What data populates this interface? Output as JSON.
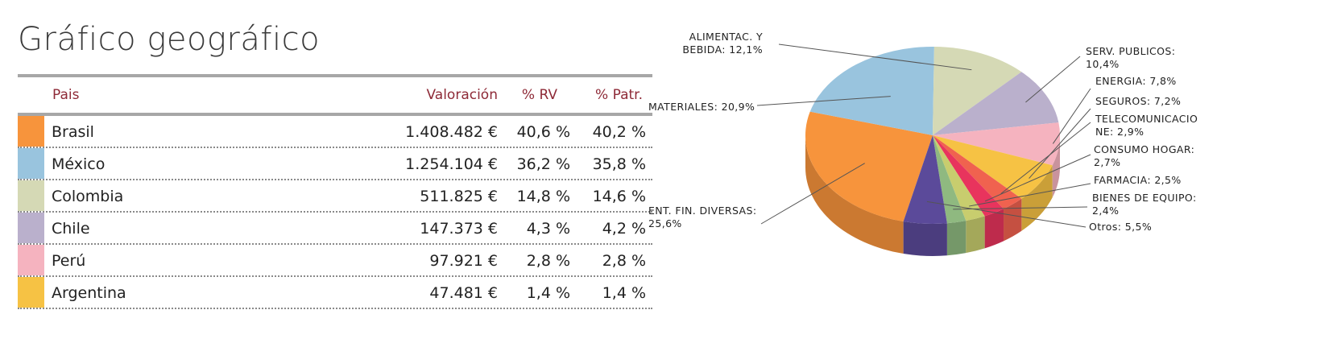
{
  "title": "Gráfico geográfico",
  "table": {
    "headers": {
      "pais": "Pais",
      "valoracion": "Valoración",
      "rv": "% RV",
      "patr": "% Patr."
    },
    "rows": [
      {
        "country": "Brasil",
        "value": "1.408.482 €",
        "rv": "40,6 %",
        "patr": "40,2 %",
        "color": "#f7943c"
      },
      {
        "country": "México",
        "value": "1.254.104 €",
        "rv": "36,2 %",
        "patr": "35,8 %",
        "color": "#99c4de"
      },
      {
        "country": "Colombia",
        "value": "511.825 €",
        "rv": "14,8 %",
        "patr": "14,6 %",
        "color": "#d5d9b5"
      },
      {
        "country": "Chile",
        "value": "147.373 €",
        "rv": "4,3 %",
        "patr": "4,2 %",
        "color": "#bab0cc"
      },
      {
        "country": "Perú",
        "value": "97.921 €",
        "rv": "2,8 %",
        "patr": "2,8 %",
        "color": "#f5b3bf"
      },
      {
        "country": "Argentina",
        "value": "47.481 €",
        "rv": "1,4 %",
        "patr": "1,4 %",
        "color": "#f6c244"
      }
    ]
  },
  "chart_data": {
    "type": "pie",
    "slices": [
      {
        "label": [
          "ENT. FIN. DIVERSAS:",
          "25,6%"
        ],
        "value": 25.6,
        "color": "#f7943c"
      },
      {
        "label": [
          "MATERIALES: 20,9%"
        ],
        "value": 20.9,
        "color": "#99c4de"
      },
      {
        "label": [
          "ALIMENTAC. Y",
          "BEBIDA: 12,1%"
        ],
        "value": 12.1,
        "color": "#d5d9b5"
      },
      {
        "label": [
          "SERV. PUBLICOS:",
          "10,4%"
        ],
        "value": 10.4,
        "color": "#bab0cc"
      },
      {
        "label": [
          "ENERGIA: 7,8%"
        ],
        "value": 7.8,
        "color": "#f5b3bf"
      },
      {
        "label": [
          "SEGUROS: 7,2%"
        ],
        "value": 7.2,
        "color": "#f6c244"
      },
      {
        "label": [
          "TELECOMUNICACIO",
          "NE: 2,9%"
        ],
        "value": 2.9,
        "color": "#f0624f"
      },
      {
        "label": [
          "CONSUMO HOGAR:",
          "2,7%"
        ],
        "value": 2.7,
        "color": "#e8345d"
      },
      {
        "label": [
          "FARMACIA: 2,5%"
        ],
        "value": 2.5,
        "color": "#c8cd6e"
      },
      {
        "label": [
          "BIENES DE EQUIPO:",
          "2,4%"
        ],
        "value": 2.4,
        "color": "#8fb980"
      },
      {
        "label": [
          "Otros: 5,5%"
        ],
        "value": 5.5,
        "color": "#5b4a9a"
      }
    ]
  }
}
